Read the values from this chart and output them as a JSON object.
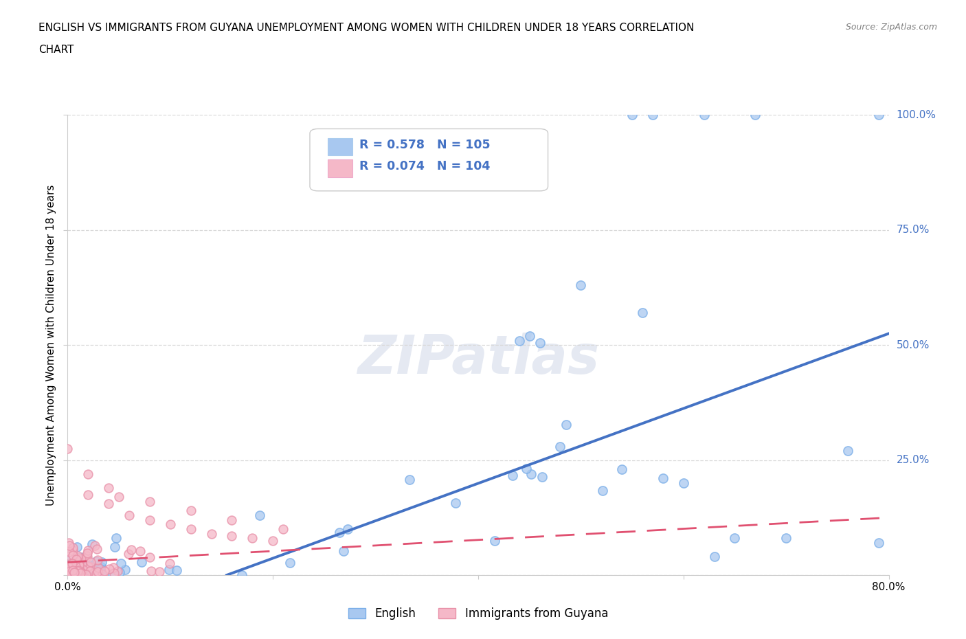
{
  "title_line1": "ENGLISH VS IMMIGRANTS FROM GUYANA UNEMPLOYMENT AMONG WOMEN WITH CHILDREN UNDER 18 YEARS CORRELATION",
  "title_line2": "CHART",
  "source": "Source: ZipAtlas.com",
  "ylabel": "Unemployment Among Women with Children Under 18 years",
  "xlim": [
    0.0,
    0.8
  ],
  "ylim": [
    0.0,
    1.0
  ],
  "xticks": [
    0.0,
    0.2,
    0.4,
    0.6,
    0.8
  ],
  "xtick_labels": [
    "0.0%",
    "",
    "",
    "",
    "80.0%"
  ],
  "yticks": [
    0.0,
    0.25,
    0.5,
    0.75,
    1.0
  ],
  "ytick_labels_right": [
    "",
    "25.0%",
    "50.0%",
    "75.0%",
    "100.0%"
  ],
  "english_color": "#a8c8f0",
  "english_edge_color": "#7aaee8",
  "guyana_color": "#f5b8c8",
  "guyana_edge_color": "#e890a8",
  "english_R": 0.578,
  "english_N": 105,
  "guyana_R": 0.074,
  "guyana_N": 104,
  "english_trend_color": "#4472c4",
  "guyana_trend_color": "#e05070",
  "ytick_color": "#4472c4",
  "watermark_text": "ZIPatlas",
  "legend_blue_label": "English",
  "legend_pink_label": "Immigrants from Guyana",
  "background_color": "#ffffff",
  "grid_color": "#d8d8d8",
  "eng_trend_x0": 0.155,
  "eng_trend_y0": 0.0,
  "eng_trend_x1": 0.8,
  "eng_trend_y1": 0.525,
  "guy_trend_x0": 0.0,
  "guy_trend_y0": 0.028,
  "guy_trend_x1": 0.8,
  "guy_trend_y1": 0.125
}
